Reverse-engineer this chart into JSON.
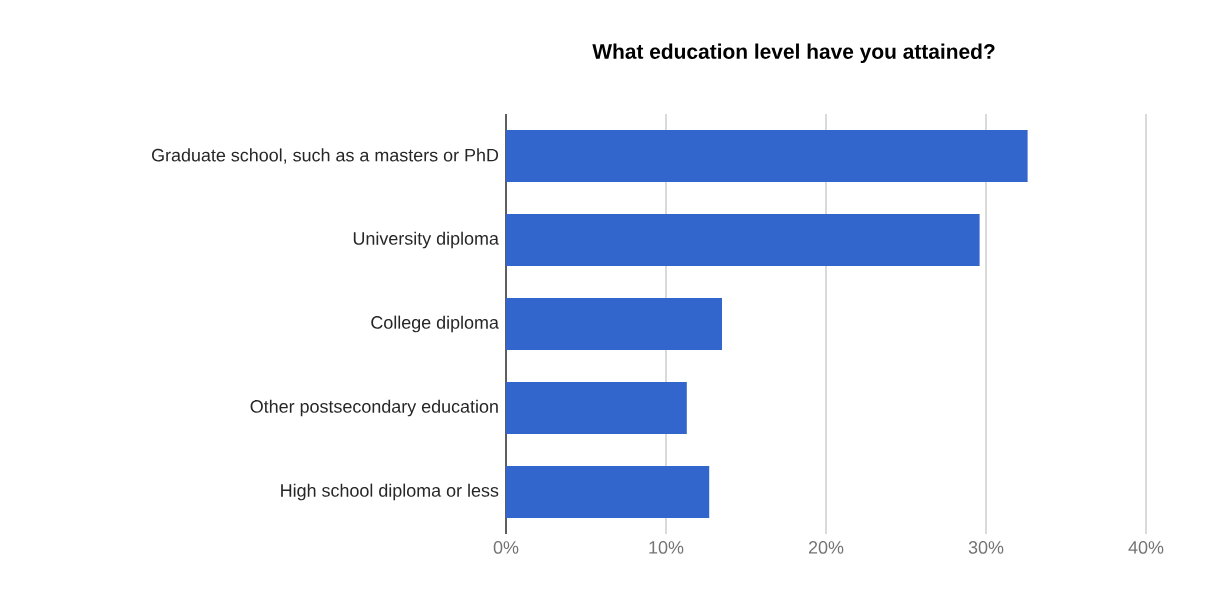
{
  "chart_data": {
    "type": "bar",
    "orientation": "horizontal",
    "title": "What education level have you attained?",
    "categories": [
      "Graduate school, such as a masters or PhD",
      "University diploma",
      "College diploma",
      "Other postsecondary education",
      "High school diploma or less"
    ],
    "values": [
      32.6,
      29.6,
      13.5,
      11.3,
      12.7
    ],
    "color": "#3366cc",
    "xlim": [
      0,
      40
    ],
    "xticks": [
      {
        "value": 0,
        "label": "0%"
      },
      {
        "value": 10,
        "label": "10%"
      },
      {
        "value": 20,
        "label": "20%"
      },
      {
        "value": 30,
        "label": "30%"
      },
      {
        "value": 40,
        "label": "40%"
      }
    ],
    "grid": "x"
  }
}
